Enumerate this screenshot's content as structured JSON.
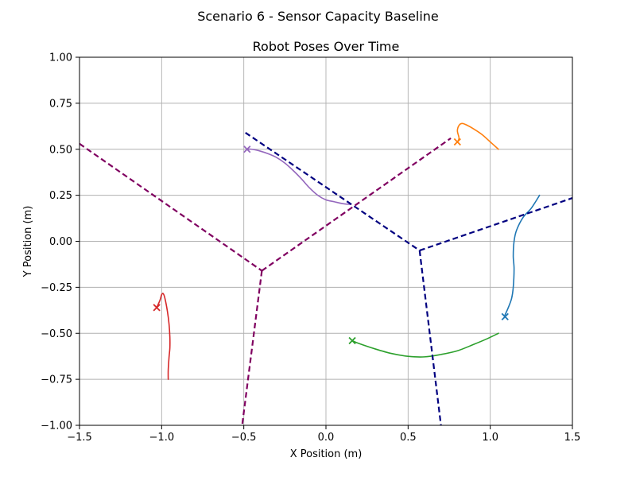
{
  "chart_data": {
    "type": "line",
    "suptitle": "Scenario 6 - Sensor Capacity Baseline",
    "title": "Robot Poses Over Time",
    "xlabel": "X Position (m)",
    "ylabel": "Y Position (m)",
    "xlim": [
      -1.5,
      1.5
    ],
    "ylim": [
      -1.0,
      1.0
    ],
    "grid": true,
    "xticks": [
      -1.5,
      -1.0,
      -0.5,
      0.0,
      0.5,
      1.0,
      1.5
    ],
    "xtick_labels": [
      "−1.5",
      "−1.0",
      "−0.5",
      "0.0",
      "0.5",
      "1.0",
      "1.5"
    ],
    "yticks": [
      -1.0,
      -0.75,
      -0.5,
      -0.25,
      0.0,
      0.25,
      0.5,
      0.75,
      1.0
    ],
    "ytick_labels": [
      "−1.00",
      "−0.75",
      "−0.50",
      "−0.25",
      "0.00",
      "0.25",
      "0.50",
      "0.75",
      "1.00"
    ],
    "trajectories": [
      {
        "color": "#1f77b4",
        "points": [
          [
            1.3,
            0.25
          ],
          [
            1.25,
            0.18
          ],
          [
            1.2,
            0.13
          ],
          [
            1.16,
            0.06
          ],
          [
            1.145,
            0.0
          ],
          [
            1.14,
            -0.08
          ],
          [
            1.145,
            -0.15
          ],
          [
            1.14,
            -0.25
          ],
          [
            1.13,
            -0.31
          ],
          [
            1.11,
            -0.36
          ],
          [
            1.09,
            -0.4
          ]
        ],
        "end_marker": [
          1.09,
          -0.41
        ]
      },
      {
        "color": "#ff7f0e",
        "points": [
          [
            1.05,
            0.5
          ],
          [
            1.0,
            0.54
          ],
          [
            0.95,
            0.58
          ],
          [
            0.9,
            0.61
          ],
          [
            0.86,
            0.63
          ],
          [
            0.83,
            0.64
          ],
          [
            0.81,
            0.63
          ],
          [
            0.8,
            0.6
          ],
          [
            0.81,
            0.56
          ],
          [
            0.8,
            0.54
          ]
        ],
        "end_marker": [
          0.8,
          0.54
        ]
      },
      {
        "color": "#2ca02c",
        "points": [
          [
            1.05,
            -0.5
          ],
          [
            0.98,
            -0.53
          ],
          [
            0.9,
            -0.56
          ],
          [
            0.8,
            -0.595
          ],
          [
            0.7,
            -0.615
          ],
          [
            0.6,
            -0.628
          ],
          [
            0.5,
            -0.625
          ],
          [
            0.4,
            -0.61
          ],
          [
            0.3,
            -0.585
          ],
          [
            0.2,
            -0.555
          ],
          [
            0.16,
            -0.54
          ]
        ],
        "end_marker": [
          0.16,
          -0.54
        ]
      },
      {
        "color": "#d62728",
        "points": [
          [
            -0.96,
            -0.75
          ],
          [
            -0.96,
            -0.7
          ],
          [
            -0.955,
            -0.63
          ],
          [
            -0.95,
            -0.58
          ],
          [
            -0.95,
            -0.52
          ],
          [
            -0.955,
            -0.45
          ],
          [
            -0.965,
            -0.38
          ],
          [
            -0.98,
            -0.31
          ],
          [
            -0.99,
            -0.285
          ],
          [
            -1.0,
            -0.29
          ],
          [
            -1.01,
            -0.32
          ],
          [
            -1.03,
            -0.36
          ]
        ],
        "end_marker": [
          -1.03,
          -0.36
        ]
      },
      {
        "color": "#9467bd",
        "points": [
          [
            0.15,
            0.2
          ],
          [
            0.1,
            0.205
          ],
          [
            0.05,
            0.215
          ],
          [
            0.0,
            0.225
          ],
          [
            -0.05,
            0.25
          ],
          [
            -0.1,
            0.29
          ],
          [
            -0.15,
            0.34
          ],
          [
            -0.2,
            0.385
          ],
          [
            -0.25,
            0.425
          ],
          [
            -0.3,
            0.455
          ],
          [
            -0.35,
            0.475
          ],
          [
            -0.4,
            0.49
          ],
          [
            -0.45,
            0.5
          ],
          [
            -0.48,
            0.5
          ]
        ],
        "end_marker": [
          -0.48,
          0.5
        ]
      }
    ],
    "voronoi_edges": [
      {
        "color": "#000080",
        "points": [
          [
            -0.49,
            0.59
          ],
          [
            0.57,
            -0.05
          ]
        ]
      },
      {
        "color": "#000080",
        "points": [
          [
            0.57,
            -0.05
          ],
          [
            1.5,
            0.235
          ]
        ]
      },
      {
        "color": "#000080",
        "points": [
          [
            0.57,
            -0.05
          ],
          [
            0.7,
            -1.0
          ]
        ]
      },
      {
        "color": "#800060",
        "points": [
          [
            -1.5,
            0.53
          ],
          [
            -0.39,
            -0.16
          ]
        ]
      },
      {
        "color": "#800060",
        "points": [
          [
            -0.39,
            -0.16
          ],
          [
            0.76,
            0.56
          ]
        ]
      },
      {
        "color": "#800060",
        "points": [
          [
            -0.39,
            -0.16
          ],
          [
            -0.51,
            -1.0
          ]
        ]
      }
    ]
  }
}
